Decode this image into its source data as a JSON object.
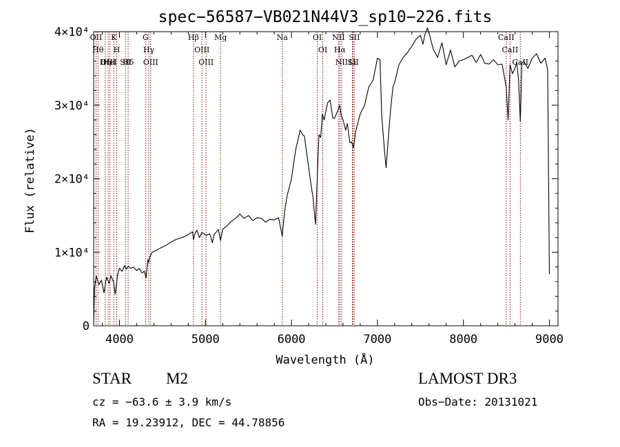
{
  "chart_data": {
    "type": "line",
    "title": "spec−56587−VB021N44V3_sp10−226.fits",
    "xlabel": "Wavelength (Å)",
    "ylabel": "Flux (relative)",
    "xlim": [
      3700,
      9100
    ],
    "ylim": [
      0,
      40000
    ],
    "x_ticks": [
      {
        "value": 4000,
        "label": "4000"
      },
      {
        "value": 5000,
        "label": "5000"
      },
      {
        "value": 6000,
        "label": "6000"
      },
      {
        "value": 7000,
        "label": "7000"
      },
      {
        "value": 8000,
        "label": "8000"
      },
      {
        "value": 9000,
        "label": "9000"
      }
    ],
    "y_ticks": [
      {
        "value": 0,
        "label": "0"
      },
      {
        "value": 10000,
        "label": "1×10⁴"
      },
      {
        "value": 20000,
        "label": "2×10⁴"
      },
      {
        "value": 30000,
        "label": "3×10⁴"
      },
      {
        "value": 40000,
        "label": "4×10⁴"
      }
    ],
    "grid": false,
    "line_color": "#000000",
    "marker_color": "#8b0000",
    "series": [
      {
        "x": [
          3700,
          3710,
          3730,
          3760,
          3790,
          3820,
          3850,
          3880,
          3900,
          3930,
          3950,
          3968,
          3980,
          4000,
          4030,
          4060,
          4080,
          4101,
          4130,
          4160,
          4200,
          4230,
          4260,
          4290,
          4310,
          4330,
          4340,
          4350,
          4380,
          4420,
          4480,
          4550,
          4600,
          4650,
          4700,
          4750,
          4800,
          4850,
          4861,
          4880,
          4900,
          4930,
          4960,
          5007,
          5050,
          5080,
          5100,
          5150,
          5175,
          5200,
          5250,
          5300,
          5350,
          5400,
          5450,
          5500,
          5550,
          5600,
          5650,
          5700,
          5750,
          5800,
          5850,
          5893,
          5920,
          5950,
          6000,
          6050,
          6080,
          6100,
          6130,
          6150,
          6200,
          6230,
          6250,
          6280,
          6300,
          6320,
          6340,
          6360,
          6380,
          6420,
          6450,
          6480,
          6500,
          6530,
          6563,
          6580,
          6600,
          6630,
          6650,
          6680,
          6700,
          6720,
          6750,
          6800,
          6850,
          6900,
          6950,
          7000,
          7030,
          7050,
          7080,
          7100,
          7130,
          7150,
          7180,
          7200,
          7250,
          7300,
          7350,
          7400,
          7450,
          7500,
          7530,
          7550,
          7580,
          7600,
          7650,
          7700,
          7750,
          7800,
          7850,
          7900,
          7950,
          8000,
          8050,
          8100,
          8150,
          8200,
          8250,
          8300,
          8350,
          8400,
          8450,
          8498,
          8520,
          8542,
          8570,
          8600,
          8620,
          8640,
          8662,
          8680,
          8700,
          8750,
          8800,
          8850,
          8900,
          8950,
          8980,
          9000
        ],
        "y": [
          300,
          5000,
          6800,
          5600,
          6200,
          4500,
          6600,
          5800,
          6800,
          6000,
          4300,
          6000,
          7000,
          7800,
          7400,
          8200,
          7700,
          8100,
          7800,
          8000,
          7500,
          7800,
          7200,
          7400,
          6500,
          9000,
          8600,
          9300,
          10000,
          10200,
          10600,
          11000,
          11400,
          11700,
          11900,
          12100,
          12400,
          12800,
          11700,
          12600,
          13000,
          12000,
          12700,
          12300,
          12500,
          11300,
          12400,
          13100,
          11600,
          13100,
          13600,
          14200,
          14600,
          15200,
          14600,
          15000,
          14300,
          14700,
          14600,
          14100,
          14500,
          14400,
          14700,
          12200,
          15500,
          17700,
          20000,
          24000,
          25500,
          26600,
          26000,
          25800,
          21600,
          19000,
          17500,
          13800,
          20000,
          26000,
          25600,
          28800,
          28000,
          30300,
          30700,
          28300,
          28200,
          29000,
          30000,
          28500,
          28000,
          26600,
          27500,
          24900,
          25000,
          24200,
          26600,
          28800,
          30000,
          32500,
          33400,
          36400,
          36200,
          28600,
          24100,
          21500,
          26000,
          29000,
          32500,
          33100,
          35500,
          36500,
          37200,
          38000,
          39000,
          39500,
          38300,
          39500,
          40500,
          39800,
          37600,
          36500,
          38500,
          35500,
          37500,
          35200,
          36000,
          36200,
          36500,
          36800,
          35800,
          36900,
          35700,
          35600,
          36200,
          35500,
          35600,
          32400,
          28000,
          35500,
          34300,
          35000,
          35900,
          33600,
          27800,
          35700,
          36000,
          35000,
          36400,
          37000,
          35700,
          36400,
          34800,
          7000
        ]
      }
    ],
    "lines_markers": [
      {
        "x": 3727,
        "label": "OII"
      },
      {
        "x": 3750,
        "label": "Hθ"
      },
      {
        "x": 3835,
        "label": "Hη"
      },
      {
        "x": 3869,
        "label": "OIII"
      },
      {
        "x": 3889,
        "label": "HeI"
      },
      {
        "x": 3934,
        "label": "K"
      },
      {
        "x": 3968,
        "label": "H"
      },
      {
        "x": 4070,
        "label": "SII"
      },
      {
        "x": 4101,
        "label": "Hδ"
      },
      {
        "x": 4304,
        "label": "G"
      },
      {
        "x": 4341,
        "label": "Hγ"
      },
      {
        "x": 4363,
        "label": "OIII"
      },
      {
        "x": 4861,
        "label": "Hβ"
      },
      {
        "x": 4959,
        "label": "OIII"
      },
      {
        "x": 5007,
        "label": "OIII"
      },
      {
        "x": 5175,
        "label": "Mg"
      },
      {
        "x": 5893,
        "label": "Na"
      },
      {
        "x": 6300,
        "label": "OI"
      },
      {
        "x": 6364,
        "label": "OI"
      },
      {
        "x": 6548,
        "label": "NII"
      },
      {
        "x": 6563,
        "label": "Hα"
      },
      {
        "x": 6584,
        "label": "NII"
      },
      {
        "x": 6708,
        "label": "Li"
      },
      {
        "x": 6716,
        "label": "SII"
      },
      {
        "x": 6731,
        "label": "SII"
      },
      {
        "x": 8498,
        "label": "CaII"
      },
      {
        "x": 8542,
        "label": "CaII"
      },
      {
        "x": 8662,
        "label": "CaII"
      }
    ]
  },
  "info": {
    "object_class": "STAR",
    "subclass": "M2",
    "survey": "LAMOST DR3",
    "cz": "cz = −63.6 ± 3.9 km/s",
    "obs_date": "Obs−Date: 20131021",
    "coords": "RA =  19.23912, DEC =  44.78856"
  }
}
